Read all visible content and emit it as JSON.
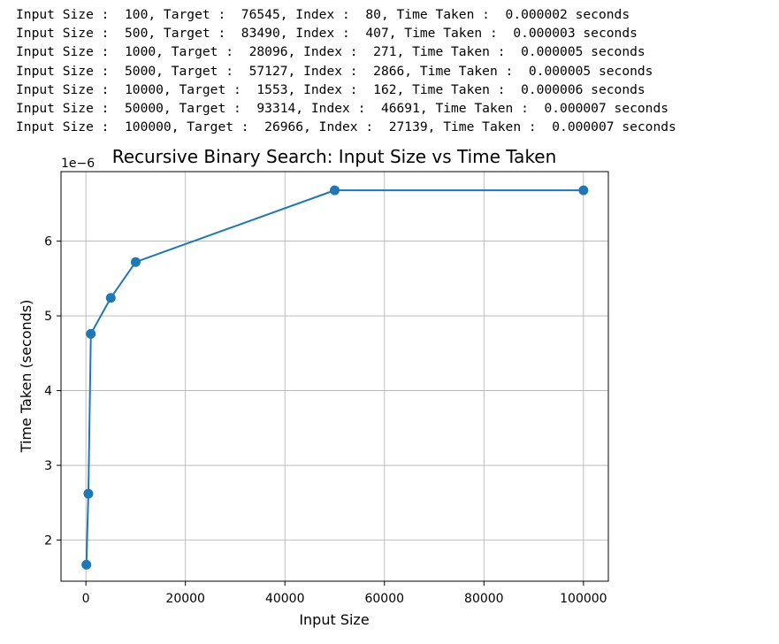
{
  "console_lines": [
    "Input Size :  100, Target :  76545, Index :  80, Time Taken :  0.000002 seconds",
    "Input Size :  500, Target :  83490, Index :  407, Time Taken :  0.000003 seconds",
    "Input Size :  1000, Target :  28096, Index :  271, Time Taken :  0.000005 seconds",
    "Input Size :  5000, Target :  57127, Index :  2866, Time Taken :  0.000005 seconds",
    "Input Size :  10000, Target :  1553, Index :  162, Time Taken :  0.000006 seconds",
    "Input Size :  50000, Target :  93314, Index :  46691, Time Taken :  0.000007 seconds",
    "Input Size :  100000, Target :  26966, Index :  27139, Time Taken :  0.000007 seconds"
  ],
  "chart_data": {
    "type": "line",
    "title": "Recursive Binary Search: Input Size vs Time Taken",
    "xlabel": "Input Size",
    "ylabel": "Time Taken (seconds)",
    "y_offset_label": "1e−6",
    "x": [
      100,
      500,
      1000,
      5000,
      10000,
      50000,
      100000
    ],
    "y": [
      1.67,
      2.62,
      4.76,
      5.24,
      5.72,
      6.68,
      6.68
    ],
    "xlim": [
      -5000,
      105000
    ],
    "ylim": [
      1.45,
      6.93
    ],
    "xticks": [
      0,
      20000,
      40000,
      60000,
      80000,
      100000
    ],
    "xtick_labels": [
      "0",
      "20000",
      "40000",
      "60000",
      "80000",
      "100000"
    ],
    "yticks": [
      2,
      3,
      4,
      5,
      6
    ],
    "ytick_labels": [
      "2",
      "3",
      "4",
      "5",
      "6"
    ],
    "grid": true,
    "marker": "circle",
    "line_color": "#1f77b4"
  }
}
